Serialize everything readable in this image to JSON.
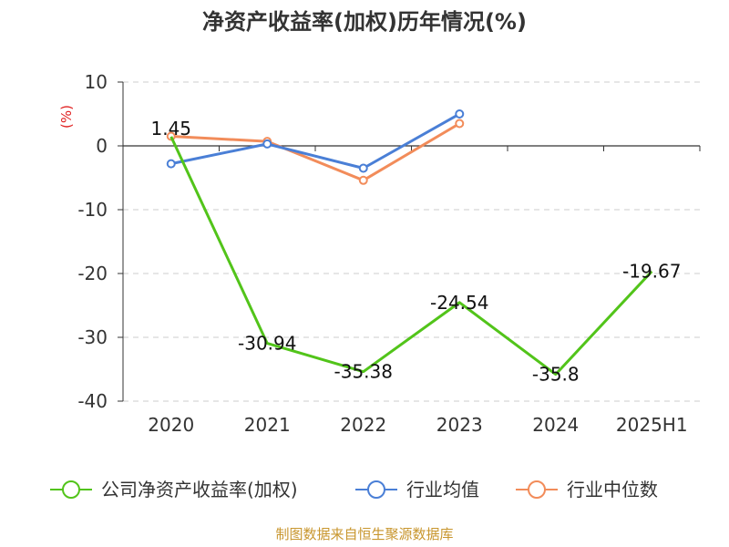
{
  "chart_data": {
    "type": "line",
    "title": "净资产收益率(加权)历年情况(%)",
    "ylabel": "(%)",
    "categories": [
      "2020",
      "2021",
      "2022",
      "2023",
      "2024",
      "2025H1"
    ],
    "ylim": [
      -40,
      10
    ],
    "yticks": [
      "10",
      "0",
      "-10",
      "-20",
      "-30",
      "-40"
    ],
    "grid": true,
    "legend_position": "bottom",
    "series": [
      {
        "name": "公司净资产收益率(加权)",
        "color": "#52c41a",
        "values": [
          1.45,
          -30.94,
          -35.38,
          -24.54,
          -35.8,
          -19.67
        ],
        "labels": [
          "1.45",
          "-30.94",
          "-35.38",
          "-24.54",
          "-35.8",
          "-19.67"
        ]
      },
      {
        "name": "行业均值",
        "color": "#4a7fd6",
        "values": [
          -2.8,
          0.3,
          -3.5,
          5.0,
          null,
          null
        ]
      },
      {
        "name": "行业中位数",
        "color": "#f28c5a",
        "values": [
          1.5,
          0.7,
          -5.4,
          3.5,
          null,
          null
        ]
      }
    ]
  },
  "source": "制图数据来自恒生聚源数据库"
}
